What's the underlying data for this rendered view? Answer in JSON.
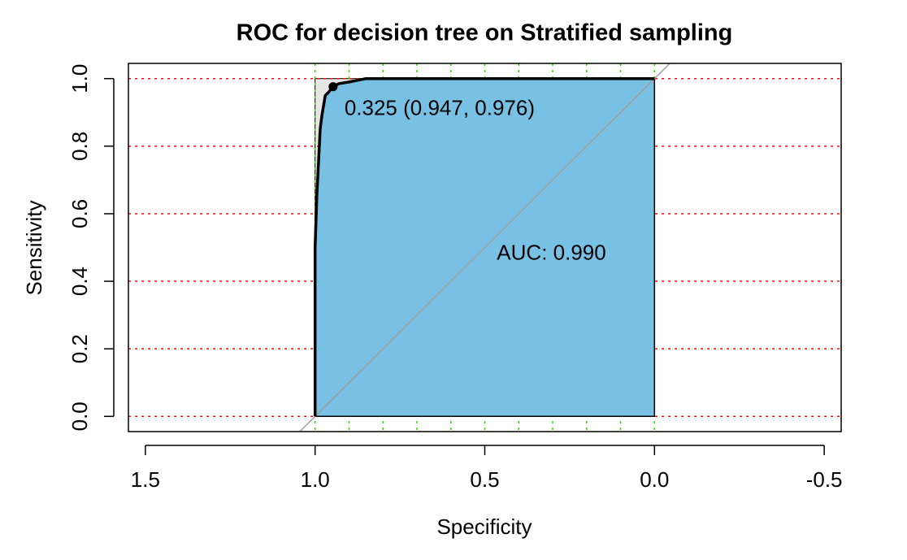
{
  "chart_data": {
    "type": "roc",
    "title": "ROC for decision tree on Stratified sampling",
    "xlabel": "Specificity",
    "ylabel": "Sensitivity",
    "x": [
      1,
      1,
      0.995,
      0.99,
      0.985,
      0.98,
      0.975,
      0.97,
      0.96,
      0.947,
      0.93,
      0.9,
      0.85,
      0
    ],
    "series": [
      {
        "color": "#000000",
        "fill": "#78c1e4",
        "values": [
          0,
          0.5,
          0.65,
          0.75,
          0.85,
          0.89,
          0.92,
          0.95,
          0.96,
          0.976,
          0.985,
          0.99,
          1,
          1
        ]
      }
    ],
    "best_point": {
      "x": 0.947,
      "y": 0.976,
      "label": "0.325 (0.947, 0.976)"
    },
    "auc_label": "AUC: 0.990",
    "xlim": [
      1.55,
      -0.55
    ],
    "ylim": [
      -0.045,
      1.045
    ],
    "xticks": [
      {
        "value": 1.5,
        "label": "1.5"
      },
      {
        "value": 1,
        "label": "1.0"
      },
      {
        "value": 0.5,
        "label": "0.5"
      },
      {
        "value": 0,
        "label": "0.0"
      },
      {
        "value": -0.5,
        "label": "-0.5"
      }
    ],
    "yticks": [
      {
        "value": 0,
        "label": "0.0"
      },
      0.2,
      0.4,
      0.6,
      0.8,
      {
        "value": 1,
        "label": "1.0"
      }
    ],
    "xgrid": [
      1,
      0.9,
      0.8,
      0.7,
      0.6,
      0.5,
      0.4,
      0.3,
      0.2,
      0.1,
      0
    ],
    "xgrid_color": "#33dd00",
    "ygrid_color": "#ee1111",
    "max_auc_fill": "#e6e6e6",
    "diagonal_color": "#a0a0a0"
  }
}
